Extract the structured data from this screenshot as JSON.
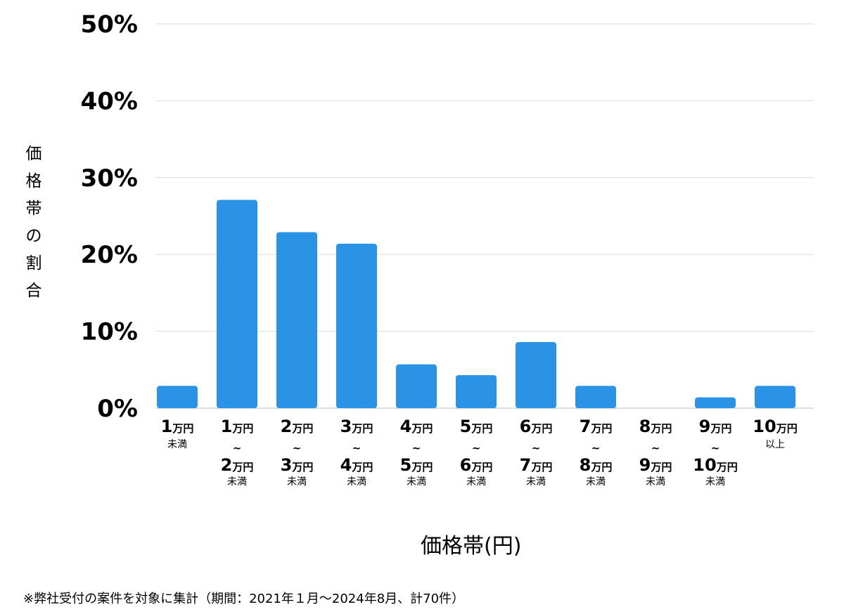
{
  "chart_data": {
    "type": "bar",
    "title": "",
    "ylabel": "価格帯の割合",
    "xlabel": "価格帯(円)",
    "ylim": [
      0,
      50
    ],
    "yticks": [
      "0%",
      "10%",
      "20%",
      "30%",
      "40%",
      "50%"
    ],
    "ytick_values": [
      0,
      10,
      20,
      30,
      40,
      50
    ],
    "grid": true,
    "bar_color": "#2A93E6",
    "categories": [
      {
        "from_num": "1",
        "from_unit": "万円",
        "to_num": "",
        "to_unit": "",
        "suffix": "未満",
        "tilde": ""
      },
      {
        "from_num": "1",
        "from_unit": "万円",
        "to_num": "2",
        "to_unit": "万円",
        "suffix": "未満",
        "tilde": "~"
      },
      {
        "from_num": "2",
        "from_unit": "万円",
        "to_num": "3",
        "to_unit": "万円",
        "suffix": "未満",
        "tilde": "~"
      },
      {
        "from_num": "3",
        "from_unit": "万円",
        "to_num": "4",
        "to_unit": "万円",
        "suffix": "未満",
        "tilde": "~"
      },
      {
        "from_num": "4",
        "from_unit": "万円",
        "to_num": "5",
        "to_unit": "万円",
        "suffix": "未満",
        "tilde": "~"
      },
      {
        "from_num": "5",
        "from_unit": "万円",
        "to_num": "6",
        "to_unit": "万円",
        "suffix": "未満",
        "tilde": "~"
      },
      {
        "from_num": "6",
        "from_unit": "万円",
        "to_num": "7",
        "to_unit": "万円",
        "suffix": "未満",
        "tilde": "~"
      },
      {
        "from_num": "7",
        "from_unit": "万円",
        "to_num": "8",
        "to_unit": "万円",
        "suffix": "未満",
        "tilde": "~"
      },
      {
        "from_num": "8",
        "from_unit": "万円",
        "to_num": "9",
        "to_unit": "万円",
        "suffix": "未満",
        "tilde": "~"
      },
      {
        "from_num": "9",
        "from_unit": "万円",
        "to_num": "10",
        "to_unit": "万円",
        "suffix": "未満",
        "tilde": "~"
      },
      {
        "from_num": "10",
        "from_unit": "万円",
        "to_num": "",
        "to_unit": "",
        "suffix": "以上",
        "tilde": ""
      }
    ],
    "values": [
      2.9,
      27.1,
      22.9,
      21.4,
      5.7,
      4.3,
      8.6,
      2.9,
      0,
      1.4,
      2.9
    ]
  },
  "footnote": "※弊社受付の案件を対象に集計（期間：2021年１月〜2024年8月、計70件）"
}
